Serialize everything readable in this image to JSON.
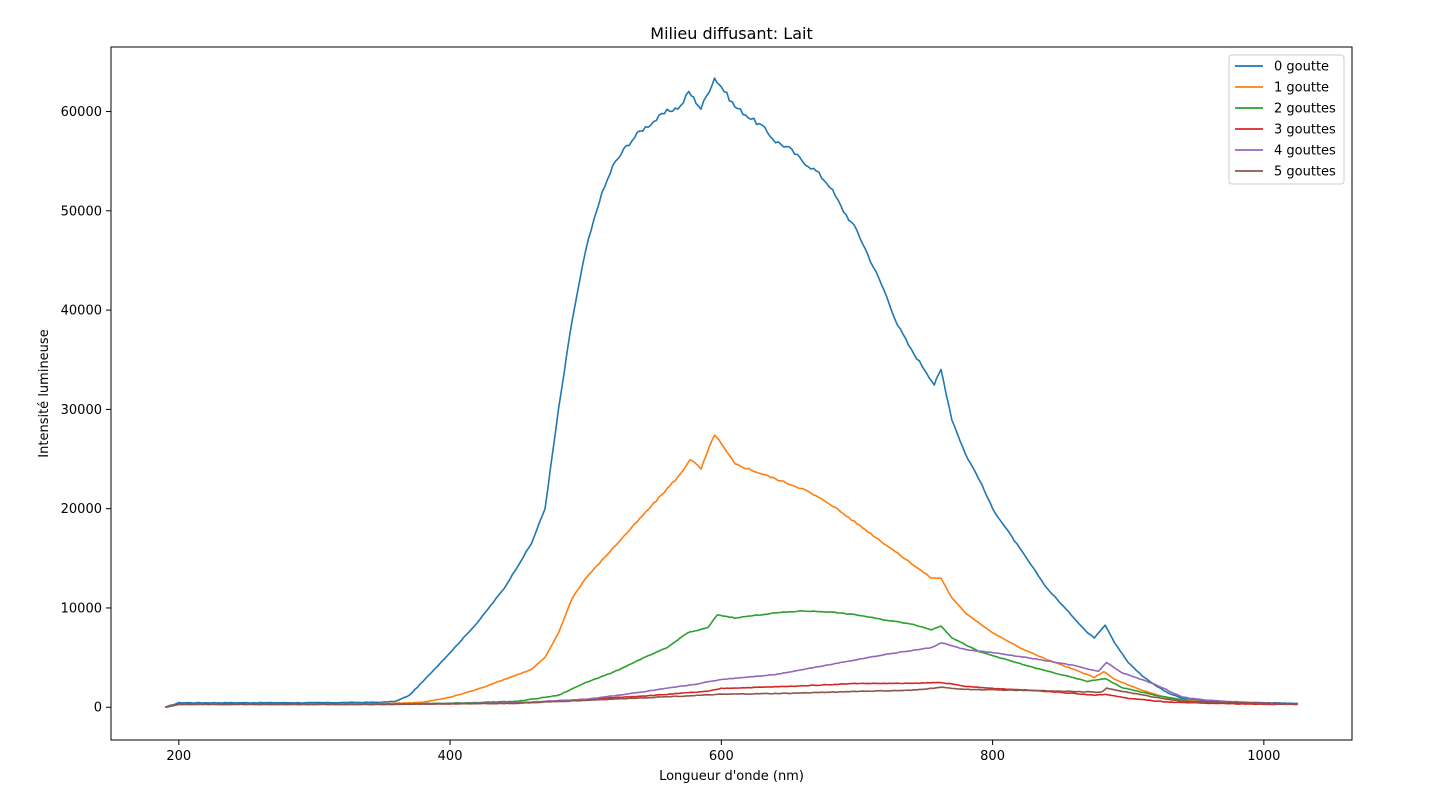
{
  "chart_data": {
    "type": "line",
    "title": "Milieu diffusant: Lait",
    "xlabel": "Longueur d'onde (nm)",
    "ylabel": "Intensité lumineuse",
    "xlim": [
      150,
      1065
    ],
    "ylim": [
      -3300,
      66500
    ],
    "xticks": [
      200,
      400,
      600,
      800,
      1000
    ],
    "yticks": [
      0,
      10000,
      20000,
      30000,
      40000,
      50000,
      60000
    ],
    "grid": false,
    "legend_position": "top-right",
    "series": [
      {
        "name": "0 goutte",
        "color": "#1f77b4",
        "points": [
          [
            190,
            0
          ],
          [
            200,
            450
          ],
          [
            250,
            450
          ],
          [
            300,
            450
          ],
          [
            350,
            500
          ],
          [
            360,
            600
          ],
          [
            370,
            1200
          ],
          [
            380,
            2600
          ],
          [
            400,
            5500
          ],
          [
            420,
            8500
          ],
          [
            440,
            12000
          ],
          [
            460,
            16500
          ],
          [
            470,
            20000
          ],
          [
            480,
            30000
          ],
          [
            490,
            39000
          ],
          [
            500,
            46000
          ],
          [
            510,
            51000
          ],
          [
            520,
            54500
          ],
          [
            530,
            56500
          ],
          [
            540,
            58000
          ],
          [
            550,
            59000
          ],
          [
            560,
            60000
          ],
          [
            570,
            60500
          ],
          [
            576,
            62000
          ],
          [
            585,
            60300
          ],
          [
            595,
            63400
          ],
          [
            600,
            62500
          ],
          [
            610,
            60500
          ],
          [
            620,
            59500
          ],
          [
            630,
            58500
          ],
          [
            640,
            57000
          ],
          [
            650,
            56300
          ],
          [
            660,
            55000
          ],
          [
            670,
            54000
          ],
          [
            680,
            52500
          ],
          [
            690,
            50000
          ],
          [
            700,
            48000
          ],
          [
            710,
            45000
          ],
          [
            720,
            42000
          ],
          [
            730,
            38500
          ],
          [
            740,
            36000
          ],
          [
            750,
            34000
          ],
          [
            757,
            32500
          ],
          [
            762,
            34000
          ],
          [
            770,
            29000
          ],
          [
            780,
            25500
          ],
          [
            790,
            23000
          ],
          [
            800,
            20000
          ],
          [
            810,
            18000
          ],
          [
            820,
            16000
          ],
          [
            830,
            14000
          ],
          [
            840,
            12000
          ],
          [
            850,
            10500
          ],
          [
            860,
            9000
          ],
          [
            870,
            7500
          ],
          [
            875,
            7000
          ],
          [
            883,
            8300
          ],
          [
            890,
            6500
          ],
          [
            900,
            4500
          ],
          [
            910,
            3200
          ],
          [
            920,
            2200
          ],
          [
            930,
            1400
          ],
          [
            940,
            900
          ],
          [
            960,
            600
          ],
          [
            980,
            500
          ],
          [
            1000,
            450
          ],
          [
            1025,
            400
          ]
        ]
      },
      {
        "name": "1 goutte",
        "color": "#ff7f0e",
        "points": [
          [
            190,
            0
          ],
          [
            200,
            300
          ],
          [
            300,
            300
          ],
          [
            350,
            350
          ],
          [
            380,
            500
          ],
          [
            400,
            1000
          ],
          [
            420,
            1800
          ],
          [
            440,
            2800
          ],
          [
            460,
            3800
          ],
          [
            470,
            5000
          ],
          [
            480,
            7500
          ],
          [
            490,
            11000
          ],
          [
            500,
            13000
          ],
          [
            520,
            16000
          ],
          [
            540,
            19000
          ],
          [
            560,
            22000
          ],
          [
            570,
            23500
          ],
          [
            577,
            25000
          ],
          [
            585,
            24000
          ],
          [
            595,
            27500
          ],
          [
            600,
            26500
          ],
          [
            610,
            24500
          ],
          [
            620,
            24000
          ],
          [
            640,
            23000
          ],
          [
            660,
            22000
          ],
          [
            680,
            20500
          ],
          [
            700,
            18500
          ],
          [
            720,
            16500
          ],
          [
            740,
            14500
          ],
          [
            755,
            13000
          ],
          [
            762,
            13000
          ],
          [
            770,
            11000
          ],
          [
            780,
            9500
          ],
          [
            800,
            7500
          ],
          [
            820,
            6000
          ],
          [
            840,
            4800
          ],
          [
            860,
            3800
          ],
          [
            875,
            3000
          ],
          [
            882,
            3600
          ],
          [
            890,
            2800
          ],
          [
            910,
            1700
          ],
          [
            930,
            900
          ],
          [
            960,
            450
          ],
          [
            1000,
            350
          ],
          [
            1025,
            300
          ]
        ]
      },
      {
        "name": "2 gouttes",
        "color": "#2ca02c",
        "points": [
          [
            190,
            0
          ],
          [
            200,
            300
          ],
          [
            350,
            300
          ],
          [
            400,
            400
          ],
          [
            450,
            600
          ],
          [
            480,
            1200
          ],
          [
            500,
            2500
          ],
          [
            520,
            3500
          ],
          [
            540,
            4800
          ],
          [
            560,
            6000
          ],
          [
            575,
            7500
          ],
          [
            590,
            8000
          ],
          [
            597,
            9300
          ],
          [
            610,
            9000
          ],
          [
            640,
            9500
          ],
          [
            660,
            9700
          ],
          [
            680,
            9600
          ],
          [
            700,
            9300
          ],
          [
            720,
            8800
          ],
          [
            740,
            8400
          ],
          [
            755,
            7800
          ],
          [
            762,
            8200
          ],
          [
            770,
            7000
          ],
          [
            790,
            5600
          ],
          [
            810,
            4800
          ],
          [
            830,
            4000
          ],
          [
            850,
            3300
          ],
          [
            870,
            2600
          ],
          [
            883,
            2900
          ],
          [
            895,
            2000
          ],
          [
            920,
            1200
          ],
          [
            950,
            500
          ],
          [
            1000,
            350
          ],
          [
            1025,
            300
          ]
        ]
      },
      {
        "name": "3 gouttes",
        "color": "#d62728",
        "points": [
          [
            190,
            0
          ],
          [
            200,
            300
          ],
          [
            350,
            300
          ],
          [
            450,
            400
          ],
          [
            500,
            800
          ],
          [
            550,
            1200
          ],
          [
            590,
            1600
          ],
          [
            600,
            1900
          ],
          [
            650,
            2100
          ],
          [
            700,
            2400
          ],
          [
            740,
            2400
          ],
          [
            762,
            2500
          ],
          [
            780,
            2100
          ],
          [
            800,
            1900
          ],
          [
            830,
            1700
          ],
          [
            860,
            1400
          ],
          [
            875,
            1200
          ],
          [
            883,
            1300
          ],
          [
            900,
            900
          ],
          [
            930,
            500
          ],
          [
            960,
            400
          ],
          [
            1000,
            300
          ],
          [
            1025,
            300
          ]
        ]
      },
      {
        "name": "4 gouttes",
        "color": "#9467bd",
        "points": [
          [
            190,
            0
          ],
          [
            200,
            300
          ],
          [
            350,
            300
          ],
          [
            450,
            450
          ],
          [
            500,
            800
          ],
          [
            540,
            1500
          ],
          [
            580,
            2300
          ],
          [
            600,
            2800
          ],
          [
            640,
            3300
          ],
          [
            680,
            4300
          ],
          [
            720,
            5300
          ],
          [
            755,
            6000
          ],
          [
            762,
            6500
          ],
          [
            780,
            5800
          ],
          [
            800,
            5500
          ],
          [
            830,
            4900
          ],
          [
            860,
            4200
          ],
          [
            878,
            3600
          ],
          [
            884,
            4500
          ],
          [
            895,
            3500
          ],
          [
            920,
            2300
          ],
          [
            940,
            1000
          ],
          [
            960,
            700
          ],
          [
            1000,
            400
          ],
          [
            1025,
            350
          ]
        ]
      },
      {
        "name": "5 gouttes",
        "color": "#8c564b",
        "points": [
          [
            190,
            0
          ],
          [
            200,
            300
          ],
          [
            350,
            300
          ],
          [
            450,
            400
          ],
          [
            500,
            700
          ],
          [
            550,
            1000
          ],
          [
            600,
            1300
          ],
          [
            650,
            1400
          ],
          [
            700,
            1600
          ],
          [
            740,
            1700
          ],
          [
            762,
            2000
          ],
          [
            780,
            1800
          ],
          [
            820,
            1700
          ],
          [
            860,
            1600
          ],
          [
            880,
            1500
          ],
          [
            884,
            1900
          ],
          [
            900,
            1500
          ],
          [
            920,
            1000
          ],
          [
            940,
            600
          ],
          [
            1000,
            400
          ],
          [
            1025,
            350
          ]
        ]
      }
    ]
  }
}
